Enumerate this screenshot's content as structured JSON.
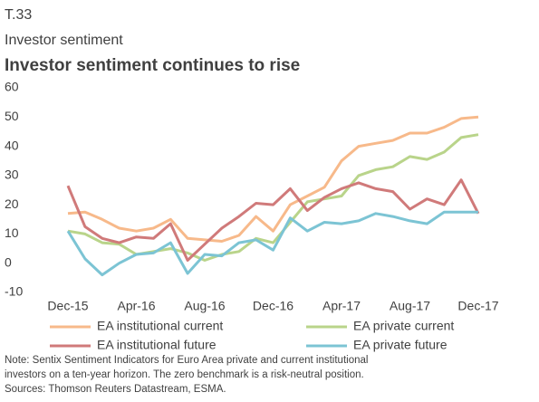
{
  "chart_data": {
    "type": "line",
    "label": "T.33",
    "subtitle": "Investor sentiment",
    "title": "Investor sentiment continues to rise",
    "categories": [
      "Dec-15",
      null,
      null,
      null,
      "Apr-16",
      null,
      null,
      null,
      "Aug-16",
      null,
      null,
      null,
      "Dec-16",
      null,
      null,
      null,
      "Apr-17",
      null,
      null,
      null,
      "Aug-17",
      null,
      null,
      null,
      "Dec-17"
    ],
    "series": [
      {
        "name": "EA institutional current",
        "color": "#f7b98a",
        "values": [
          17,
          17.5,
          15,
          12,
          11,
          12,
          15,
          8.5,
          8,
          7.5,
          9.5,
          16,
          11,
          20,
          23,
          26,
          35,
          40,
          41,
          42,
          44.5,
          44.5,
          46.5,
          49.5,
          50
        ]
      },
      {
        "name": "EA private current",
        "color": "#b9d48a",
        "values": [
          11,
          10,
          7,
          6.5,
          3,
          4,
          5,
          3.5,
          1,
          3,
          4,
          8.5,
          7,
          14,
          21,
          22,
          23,
          30,
          32,
          33,
          36.5,
          35.5,
          38,
          43,
          44
        ]
      },
      {
        "name": "EA institutional future",
        "color": "#d07a7a",
        "values": [
          26.5,
          12.5,
          8.5,
          7,
          9,
          8.5,
          13.5,
          1,
          6.5,
          12,
          16,
          20.5,
          20,
          25.5,
          18,
          22.5,
          25.5,
          27.5,
          25.5,
          24.5,
          18.5,
          22,
          20,
          28.5,
          17
        ]
      },
      {
        "name": "EA private future",
        "color": "#7cc4d4",
        "values": [
          11,
          1.5,
          -4,
          0,
          3,
          3.5,
          7,
          -3.5,
          3,
          2.5,
          7,
          8,
          4.5,
          15.5,
          11,
          14,
          13.5,
          14.5,
          17,
          16,
          14.5,
          13.5,
          17.5,
          17.5,
          17.5
        ]
      }
    ],
    "ylim": [
      -10,
      60
    ],
    "yticks": [
      -10,
      0,
      10,
      20,
      30,
      40,
      50,
      60
    ],
    "grid": false,
    "notes": [
      "Note: Sentix Sentiment Indicators for Euro Area private and current institutional",
      "investors on a ten-year horizon. The zero benchmark is a risk-neutral position.",
      "Sources: Thomson Reuters Datastream, ESMA."
    ]
  }
}
